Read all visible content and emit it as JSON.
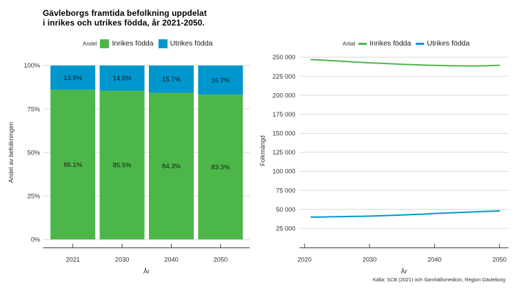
{
  "title": {
    "line1": "Gävleborgs framtida befolkning uppdelat",
    "line2": "i inrikes och utrikes födda, år 2021-2050."
  },
  "source": "Källa: SCB (2021) och Samhällsmedicin, Region Gävleborg",
  "series_labels": {
    "inrikes": "Inrikes födda",
    "utrikes": "Utrikes födda"
  },
  "colors": {
    "inrikes": "#4db649",
    "utrikes": "#0096ce",
    "grid": "#d9d9d9",
    "axis": "#404040",
    "text": "#333333",
    "bar_label": "#1a1a1a"
  },
  "chart_data": [
    {
      "type": "bar",
      "stacked": true,
      "percent": true,
      "legend_title": "Andel",
      "legend_position": "top",
      "grid": true,
      "categories": [
        "2021",
        "2030",
        "2040",
        "2050"
      ],
      "series": [
        {
          "name": "Inrikes födda",
          "color_key": "inrikes",
          "values": [
            86.1,
            85.5,
            84.3,
            83.3
          ]
        },
        {
          "name": "Utrikes födda",
          "color_key": "utrikes",
          "values": [
            13.9,
            14.5,
            15.7,
            16.7
          ]
        }
      ],
      "bar_labels": {
        "inrikes": [
          "86.1%",
          "85.5%",
          "84.3%",
          "83.3%"
        ],
        "utrikes": [
          "13.9%",
          "14.5%",
          "15.7%",
          "16.7%"
        ]
      },
      "xlabel": "År",
      "ylabel": "Andel av befolkningen",
      "ylim": [
        0,
        100
      ],
      "yticks": [
        0,
        25,
        50,
        75,
        100
      ],
      "ytick_labels": [
        "0%",
        "25%",
        "50%",
        "75%",
        "100%"
      ]
    },
    {
      "type": "line",
      "legend_title": "Antal",
      "legend_position": "top",
      "grid": true,
      "x": [
        2021,
        2022,
        2023,
        2024,
        2025,
        2026,
        2027,
        2028,
        2029,
        2030,
        2031,
        2032,
        2033,
        2034,
        2035,
        2036,
        2037,
        2038,
        2039,
        2040,
        2041,
        2042,
        2043,
        2044,
        2045,
        2046,
        2047,
        2048,
        2049,
        2050
      ],
      "series": [
        {
          "name": "Inrikes födda",
          "color_key": "inrikes",
          "values": [
            246900,
            246500,
            246100,
            245600,
            245100,
            244600,
            244100,
            243600,
            243100,
            242700,
            242300,
            241900,
            241500,
            241100,
            240700,
            240400,
            240100,
            239800,
            239500,
            239300,
            239100,
            238900,
            238800,
            238700,
            238600,
            238600,
            238700,
            238800,
            239100,
            239400
          ]
        },
        {
          "name": "Utrikes födda",
          "color_key": "utrikes",
          "values": [
            39900,
            40000,
            40100,
            40250,
            40400,
            40550,
            40700,
            40850,
            41000,
            41160,
            41400,
            41700,
            42000,
            42300,
            42600,
            42950,
            43300,
            43700,
            44100,
            44570,
            44900,
            45250,
            45600,
            45950,
            46300,
            46650,
            47000,
            47330,
            47660,
            48000
          ]
        }
      ],
      "xlabel": "År",
      "ylabel": "Folkmängd",
      "xticks": [
        2020,
        2030,
        2040,
        2050
      ],
      "ylim": [
        0,
        255000
      ],
      "yticks": [
        25000,
        50000,
        75000,
        100000,
        125000,
        150000,
        175000,
        200000,
        225000,
        250000
      ],
      "ytick_labels": [
        "25 000",
        "50 000",
        "75 000",
        "100 000",
        "125 000",
        "150 000",
        "175 000",
        "200 000",
        "225 000",
        "250 000"
      ]
    }
  ]
}
